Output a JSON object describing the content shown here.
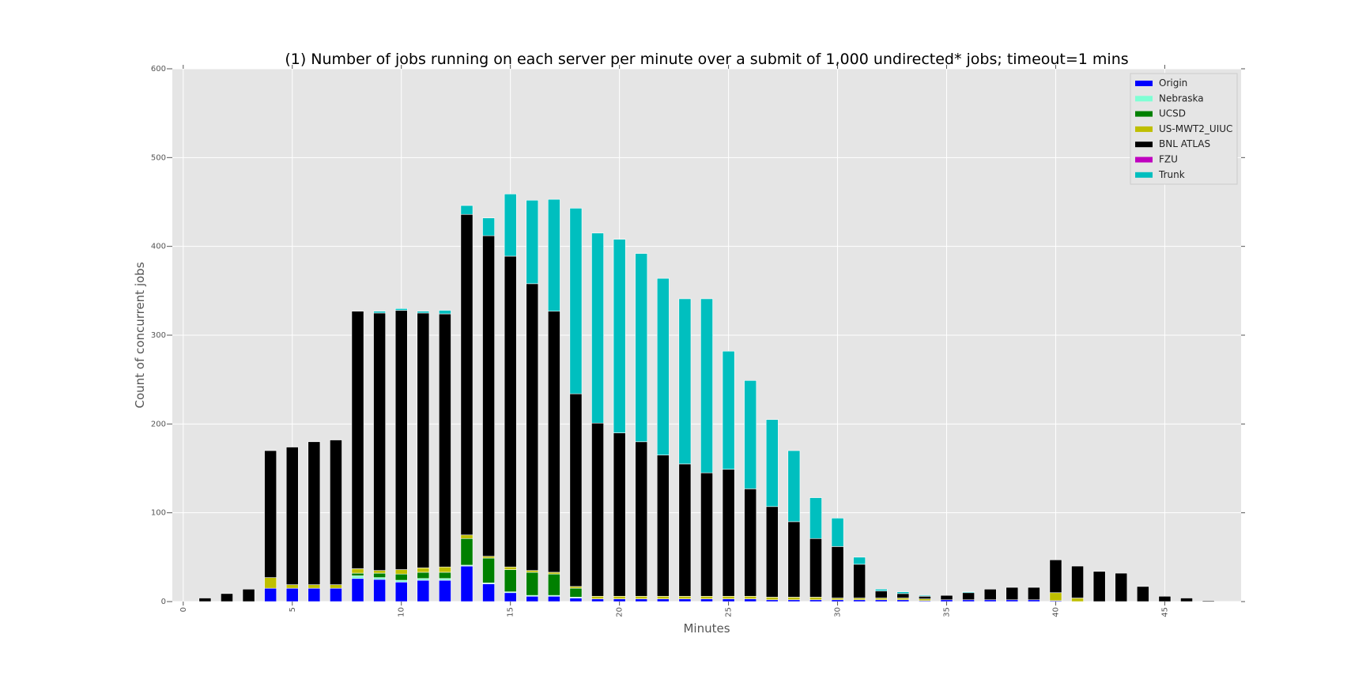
{
  "chart_data": {
    "type": "bar",
    "stacked": true,
    "title": "(1) Number of jobs running on each server per minute over a submit of 1,000 undirected* jobs; timeout=1 mins",
    "xlabel": "Minutes",
    "ylabel": "Count of concurrent jobs",
    "ylim": [
      0,
      600
    ],
    "yticks": [
      0,
      100,
      200,
      300,
      400,
      500,
      600
    ],
    "xticks": [
      0,
      5,
      10,
      15,
      20,
      25,
      30,
      35,
      40,
      45
    ],
    "x": [
      0,
      1,
      2,
      3,
      4,
      5,
      6,
      7,
      8,
      9,
      10,
      11,
      12,
      13,
      14,
      15,
      16,
      17,
      18,
      19,
      20,
      21,
      22,
      23,
      24,
      25,
      26,
      27,
      28,
      29,
      30,
      31,
      32,
      33,
      34,
      35,
      36,
      37,
      38,
      39,
      40,
      41,
      42,
      43,
      44,
      45,
      46,
      47,
      48
    ],
    "grid": true,
    "legend_position": "top-right",
    "series": [
      {
        "name": "Origin",
        "color": "#0000ff",
        "values": [
          0,
          0,
          0,
          0,
          15,
          15,
          15,
          15,
          26,
          25,
          22,
          24,
          24,
          40,
          20,
          10,
          6,
          6,
          4,
          3,
          3,
          3,
          3,
          3,
          3,
          3,
          3,
          2,
          2,
          2,
          2,
          2,
          2,
          2,
          1,
          2,
          2,
          2,
          2,
          2,
          1,
          0,
          0,
          0,
          0,
          0,
          0,
          0,
          0
        ]
      },
      {
        "name": "Nebraska",
        "color": "#7fffd4",
        "values": [
          0,
          0,
          0,
          0,
          0,
          0,
          0,
          0,
          3,
          2,
          2,
          2,
          2,
          1,
          1,
          1,
          1,
          1,
          1,
          0,
          0,
          0,
          0,
          0,
          0,
          0,
          0,
          0,
          0,
          0,
          0,
          0,
          0,
          0,
          0,
          0,
          0,
          0,
          0,
          0,
          0,
          0,
          0,
          0,
          0,
          0,
          0,
          0,
          0
        ]
      },
      {
        "name": "UCSD",
        "color": "#008000",
        "values": [
          0,
          0,
          0,
          0,
          0,
          0,
          0,
          0,
          3,
          5,
          7,
          7,
          7,
          30,
          28,
          25,
          26,
          24,
          10,
          0,
          0,
          0,
          0,
          0,
          0,
          0,
          0,
          0,
          0,
          0,
          0,
          0,
          0,
          0,
          0,
          0,
          0,
          0,
          0,
          0,
          0,
          0,
          0,
          0,
          0,
          0,
          0,
          0,
          0
        ]
      },
      {
        "name": "US-MWT2_UIUC",
        "color": "#bfbf00",
        "values": [
          0,
          0,
          0,
          0,
          12,
          4,
          4,
          4,
          5,
          3,
          5,
          5,
          6,
          4,
          2,
          3,
          2,
          2,
          2,
          3,
          3,
          3,
          3,
          3,
          3,
          3,
          3,
          3,
          3,
          3,
          2,
          2,
          2,
          2,
          2,
          0,
          0,
          0,
          0,
          0,
          9,
          4,
          0,
          0,
          0,
          0,
          0,
          0,
          0
        ]
      },
      {
        "name": "BNL ATLAS",
        "color": "#000000",
        "values": [
          0,
          4,
          9,
          14,
          143,
          155,
          161,
          163,
          290,
          290,
          292,
          287,
          285,
          361,
          361,
          350,
          323,
          294,
          217,
          195,
          184,
          174,
          159,
          149,
          139,
          143,
          121,
          102,
          85,
          66,
          58,
          38,
          8,
          5,
          3,
          5,
          8,
          12,
          14,
          14,
          37,
          36,
          34,
          32,
          17,
          6,
          4,
          1,
          0
        ]
      },
      {
        "name": "FZU",
        "color": "#bf00bf",
        "values": [
          0,
          0,
          0,
          0,
          0,
          0,
          0,
          0,
          0,
          0,
          0,
          0,
          0,
          0,
          0,
          0,
          0,
          0,
          0,
          0,
          0,
          0,
          0,
          0,
          0,
          0,
          0,
          0,
          0,
          0,
          0,
          0,
          0,
          0,
          0,
          0,
          0,
          0,
          0,
          0,
          0,
          0,
          0,
          0,
          0,
          0,
          0,
          0,
          0
        ]
      },
      {
        "name": "Trunk",
        "color": "#00bfbf",
        "values": [
          0,
          0,
          0,
          0,
          0,
          0,
          0,
          0,
          0,
          2,
          2,
          2,
          4,
          10,
          20,
          70,
          94,
          126,
          209,
          214,
          218,
          212,
          199,
          186,
          196,
          133,
          122,
          98,
          80,
          46,
          32,
          8,
          2,
          2,
          1,
          0,
          1,
          0,
          0,
          0,
          0,
          0,
          0,
          0,
          0,
          0,
          0,
          0,
          0
        ]
      }
    ]
  }
}
